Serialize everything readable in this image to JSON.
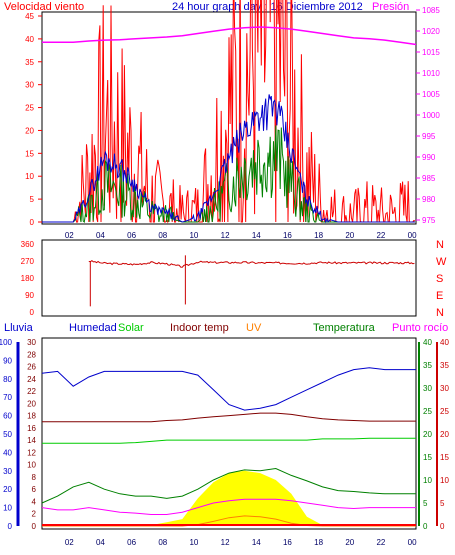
{
  "header": {
    "wind_speed_label": "Velocidad viento",
    "title": "24 hour graph day : 16 Diciembre 2012",
    "pressure_label": "Presión"
  },
  "lower_header": {
    "rain": "Lluvia",
    "humidity": "Humedad",
    "solar": "Solar",
    "indoor_temp": "Indoor temp",
    "uv": "UV",
    "temperature": "Temperatura",
    "dew_point": "Punto rocío"
  },
  "time_ticks": [
    "02",
    "04",
    "06",
    "08",
    "10",
    "12",
    "14",
    "16",
    "18",
    "20",
    "22",
    "00"
  ],
  "colors": {
    "wind": "#ff0000",
    "wind_avg": "#0000cc",
    "wind_dark": "#008000",
    "pressure": "#ff00ff",
    "direction": "#cc0000",
    "humidity": "#0000cc",
    "solar": "#00cc00",
    "indoor": "#800000",
    "uv": "#ff8000",
    "temperature": "#008000",
    "dew": "#ff00ff",
    "rain": "#0000cc",
    "solar_fill": "#ffff00"
  },
  "chart_data": [
    {
      "type": "line",
      "title": "24 hour graph day : 16 Diciembre 2012",
      "y_left_label": "Velocidad viento",
      "y_left_ticks": [
        "45",
        "40",
        "35",
        "30",
        "25",
        "20",
        "15",
        "10",
        "5",
        "0"
      ],
      "y_right_label": "Presión",
      "y_right_ticks": [
        "1085",
        "1020",
        "1015",
        "1010",
        "1005",
        "1000",
        "995",
        "990",
        "985",
        "980",
        "975"
      ],
      "x": [
        0,
        1,
        2,
        3,
        4,
        5,
        6,
        7,
        8,
        9,
        10,
        11,
        12,
        13,
        14,
        15,
        16,
        17,
        18,
        19,
        20,
        21,
        22,
        23,
        24
      ],
      "series": [
        {
          "name": "gust",
          "values": [
            0,
            0,
            0,
            10,
            22,
            18,
            12,
            5,
            3,
            1,
            2,
            12,
            24,
            32,
            38,
            40,
            26,
            10,
            3,
            1,
            1,
            2,
            1,
            2,
            3
          ]
        },
        {
          "name": "average",
          "values": [
            0,
            0,
            0,
            6,
            14,
            12,
            8,
            3,
            2,
            0,
            1,
            6,
            14,
            20,
            24,
            25,
            15,
            5,
            1,
            0,
            0,
            0,
            0,
            0,
            0
          ]
        },
        {
          "name": "low",
          "values": [
            0,
            0,
            0,
            3,
            8,
            7,
            5,
            2,
            1,
            0,
            0,
            3,
            8,
            12,
            14,
            15,
            8,
            2,
            0,
            0,
            0,
            0,
            0,
            0,
            0
          ]
        },
        {
          "name": "pressure",
          "values": [
            1016,
            1016,
            1016,
            1016.3,
            1016.5,
            1016.6,
            1016.8,
            1017,
            1017.2,
            1017.5,
            1018,
            1018.5,
            1019,
            1019.3,
            1019.5,
            1019.3,
            1019,
            1018.5,
            1018,
            1017.5,
            1017,
            1016.8,
            1016.5,
            1016,
            1015.5
          ]
        }
      ]
    },
    {
      "type": "line",
      "y_left_ticks": [
        "360",
        "270",
        "180",
        "90",
        "0"
      ],
      "y_right_ticks": [
        "N",
        "W",
        "S",
        "E",
        "N"
      ],
      "x": [
        0,
        1,
        2,
        3,
        4,
        5,
        6,
        7,
        8,
        9,
        10,
        11,
        12,
        13,
        14,
        15,
        16,
        17,
        18,
        19,
        20,
        21,
        22,
        23,
        24
      ],
      "series": [
        {
          "name": "direction",
          "values": [
            null,
            null,
            null,
            270,
            258,
            255,
            252,
            262,
            255,
            240,
            265,
            262,
            262,
            262,
            260,
            260,
            258,
            258,
            262,
            260,
            260,
            260,
            260,
            260,
            260
          ]
        }
      ]
    },
    {
      "type": "line",
      "y_axis_rain_ticks": [
        "100",
        "90",
        "80",
        "70",
        "60",
        "50",
        "40",
        "30",
        "20",
        "10",
        "0"
      ],
      "y_axis_temp_left_ticks": [
        "30",
        "28",
        "26",
        "24",
        "22",
        "20",
        "18",
        "16",
        "14",
        "12",
        "10",
        "8",
        "6",
        "4",
        "2",
        "0"
      ],
      "y_axis_right1_ticks": [
        "40",
        "35",
        "30",
        "25",
        "20",
        "15",
        "10",
        "5",
        "0"
      ],
      "y_axis_right2_ticks": [
        "40",
        "35",
        "30",
        "25",
        "20",
        "15",
        "10",
        "5",
        "0"
      ],
      "x": [
        0,
        1,
        2,
        3,
        4,
        5,
        6,
        7,
        8,
        9,
        10,
        11,
        12,
        13,
        14,
        15,
        16,
        17,
        18,
        19,
        20,
        21,
        22,
        23,
        24
      ],
      "series": [
        {
          "name": "Humedad",
          "values": [
            83,
            84,
            76,
            81,
            84,
            84,
            84,
            84,
            84,
            84,
            82,
            74,
            66,
            63,
            64,
            66,
            70,
            74,
            78,
            82,
            85,
            86,
            85,
            85,
            85
          ]
        },
        {
          "name": "Indoor temp",
          "values": [
            17,
            17,
            17,
            17,
            17,
            17,
            17,
            17,
            17.2,
            17.3,
            17.6,
            17.8,
            18,
            18.2,
            18.4,
            18.4,
            18.2,
            17.8,
            17.5,
            17.3,
            17.2,
            17.1,
            17.1,
            17.1,
            17.1
          ]
        },
        {
          "name": "Solar",
          "values": [
            13.5,
            13.5,
            13.5,
            13.5,
            13.5,
            13.5,
            13.6,
            13.8,
            14,
            14,
            14,
            14,
            14,
            14,
            14,
            14,
            14,
            14,
            14.2,
            14.2,
            14.2,
            14.3,
            14.3,
            14.3,
            14.3
          ]
        },
        {
          "name": "Temperatura",
          "values": [
            5,
            6.5,
            8.5,
            9.5,
            8,
            7,
            6.5,
            6.5,
            6,
            6.5,
            8,
            10,
            11.5,
            12.2,
            12,
            12.5,
            11,
            9.8,
            8.5,
            7.7,
            7.5,
            7.2,
            7,
            7,
            7
          ]
        },
        {
          "name": "Punto rocío",
          "values": [
            4,
            3.5,
            3.5,
            4,
            3.5,
            3,
            2.8,
            2.5,
            2.5,
            3,
            4,
            5,
            5.5,
            5.8,
            5.8,
            5.8,
            5.5,
            5,
            4.5,
            4,
            3.8,
            4,
            4,
            4,
            4
          ]
        },
        {
          "name": "UV",
          "values": [
            0,
            0,
            0,
            0,
            0,
            0,
            0,
            0,
            0,
            0,
            0.3,
            1,
            1.8,
            2.2,
            2,
            1.5,
            0.6,
            0.1,
            0,
            0,
            0,
            0,
            0,
            0,
            0
          ]
        },
        {
          "name": "Solar area",
          "values": [
            0,
            0,
            0,
            0,
            0,
            0,
            0,
            0.2,
            0.8,
            1.5,
            6,
            9.5,
            11.5,
            12,
            11.5,
            10,
            7,
            2,
            0.2,
            0,
            0,
            0,
            0,
            0,
            0
          ]
        },
        {
          "name": "Lluvia",
          "values": [
            0,
            0,
            0,
            0,
            0,
            0,
            0,
            0,
            0,
            0,
            0,
            0,
            0,
            0,
            0,
            0,
            0,
            0,
            0,
            0,
            0,
            0,
            0,
            0,
            0
          ]
        }
      ]
    }
  ]
}
